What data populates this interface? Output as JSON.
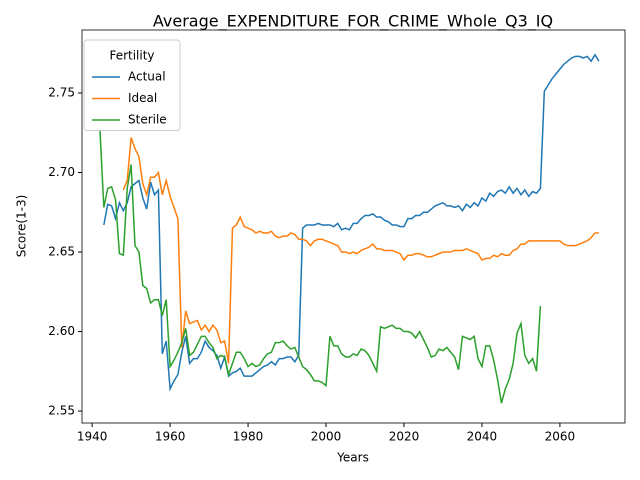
{
  "chart_data": {
    "type": "line",
    "title": "Average_EXPENDITURE_FOR_CRIME_Whole_Q3_IQ",
    "xlabel": "Years",
    "ylabel": "Score(1-3)",
    "x": [
      1942,
      1943,
      1944,
      1945,
      1946,
      1947,
      1948,
      1949,
      1950,
      1951,
      1952,
      1953,
      1954,
      1955,
      1956,
      1957,
      1958,
      1959,
      1960,
      1961,
      1962,
      1963,
      1964,
      1965,
      1966,
      1967,
      1968,
      1969,
      1970,
      1971,
      1972,
      1973,
      1974,
      1975,
      1976,
      1977,
      1978,
      1979,
      1980,
      1981,
      1982,
      1983,
      1984,
      1985,
      1986,
      1987,
      1988,
      1989,
      1990,
      1991,
      1992,
      1993,
      1994,
      1995,
      1996,
      1997,
      1998,
      1999,
      2000,
      2001,
      2002,
      2003,
      2004,
      2005,
      2006,
      2007,
      2008,
      2009,
      2010,
      2011,
      2012,
      2013,
      2014,
      2015,
      2016,
      2017,
      2018,
      2019,
      2020,
      2021,
      2022,
      2023,
      2024,
      2025,
      2026,
      2027,
      2028,
      2029,
      2030,
      2031,
      2032,
      2033,
      2034,
      2035,
      2036,
      2037,
      2038,
      2039,
      2040,
      2041,
      2042,
      2043,
      2044,
      2045,
      2046,
      2047,
      2048,
      2049,
      2050,
      2051,
      2052,
      2053,
      2054,
      2055,
      2056,
      2057,
      2058,
      2059,
      2060,
      2061,
      2062,
      2063,
      2064,
      2065,
      2066,
      2067,
      2068,
      2069,
      2070
    ],
    "series": [
      {
        "name": "Actual",
        "color": "#1f77b4",
        "values": [
          null,
          2.667,
          2.68,
          2.679,
          2.671,
          2.681,
          2.676,
          2.681,
          2.691,
          2.693,
          2.695,
          2.684,
          2.677,
          2.694,
          2.686,
          2.689,
          2.586,
          2.594,
          2.564,
          2.569,
          2.573,
          2.587,
          2.597,
          2.58,
          2.583,
          2.583,
          2.587,
          2.594,
          2.59,
          2.588,
          2.585,
          2.577,
          2.584,
          2.572,
          2.574,
          2.575,
          2.577,
          2.572,
          2.572,
          2.572,
          2.574,
          2.576,
          2.578,
          2.579,
          2.581,
          2.579,
          2.583,
          2.583,
          2.584,
          2.584,
          2.581,
          2.585,
          2.665,
          2.667,
          2.667,
          2.667,
          2.668,
          2.667,
          2.667,
          2.667,
          2.666,
          2.668,
          2.664,
          2.665,
          2.664,
          2.668,
          2.668,
          2.671,
          2.673,
          2.673,
          2.674,
          2.672,
          2.672,
          2.67,
          2.669,
          2.667,
          2.667,
          2.666,
          2.666,
          2.671,
          2.671,
          2.673,
          2.673,
          2.675,
          2.675,
          2.677,
          2.679,
          2.68,
          2.681,
          2.679,
          2.679,
          2.678,
          2.679,
          2.676,
          2.68,
          2.678,
          2.681,
          2.679,
          2.684,
          2.682,
          2.687,
          2.685,
          2.688,
          2.689,
          2.687,
          2.691,
          2.687,
          2.69,
          2.686,
          2.689,
          2.685,
          2.688,
          2.687,
          2.69,
          2.751,
          2.755,
          2.759,
          2.762,
          2.765,
          2.768,
          2.77,
          2.772,
          2.773,
          2.773,
          2.772,
          2.773,
          2.77,
          2.774,
          2.77
        ]
      },
      {
        "name": "Ideal",
        "color": "#ff7f0e",
        "values": [
          null,
          null,
          null,
          null,
          null,
          null,
          2.689,
          2.695,
          2.722,
          2.715,
          2.71,
          2.693,
          2.686,
          2.697,
          2.697,
          2.7,
          2.686,
          2.695,
          2.685,
          2.678,
          2.671,
          2.59,
          2.613,
          2.605,
          2.606,
          2.607,
          2.601,
          2.604,
          2.6,
          2.604,
          2.601,
          2.593,
          2.594,
          2.58,
          2.665,
          2.667,
          2.672,
          2.666,
          2.665,
          2.664,
          2.662,
          2.663,
          2.662,
          2.662,
          2.663,
          2.66,
          2.659,
          2.66,
          2.66,
          2.662,
          2.661,
          2.658,
          2.658,
          2.657,
          2.654,
          2.657,
          2.658,
          2.658,
          2.657,
          2.656,
          2.655,
          2.654,
          2.65,
          2.65,
          2.649,
          2.65,
          2.649,
          2.651,
          2.652,
          2.653,
          2.655,
          2.652,
          2.652,
          2.651,
          2.651,
          2.651,
          2.65,
          2.649,
          2.645,
          2.648,
          2.648,
          2.649,
          2.649,
          2.648,
          2.647,
          2.647,
          2.648,
          2.649,
          2.65,
          2.65,
          2.65,
          2.651,
          2.651,
          2.651,
          2.652,
          2.651,
          2.65,
          2.649,
          2.645,
          2.646,
          2.646,
          2.648,
          2.647,
          2.649,
          2.648,
          2.648,
          2.651,
          2.652,
          2.655,
          2.655,
          2.657,
          2.657,
          2.657,
          2.657,
          2.657,
          2.657,
          2.657,
          2.657,
          2.657,
          2.655,
          2.654,
          2.654,
          2.654,
          2.655,
          2.656,
          2.657,
          2.659,
          2.662,
          2.662
        ]
      },
      {
        "name": "Sterile",
        "color": "#2ca02c",
        "values": [
          2.727,
          2.678,
          2.69,
          2.691,
          2.683,
          2.649,
          2.648,
          2.69,
          2.705,
          2.654,
          2.65,
          2.629,
          2.627,
          2.618,
          2.62,
          2.62,
          2.61,
          2.62,
          2.578,
          2.582,
          2.587,
          2.593,
          2.602,
          2.585,
          2.587,
          2.592,
          2.597,
          2.597,
          2.593,
          2.59,
          2.583,
          2.585,
          2.584,
          2.573,
          2.58,
          2.587,
          2.587,
          2.583,
          2.578,
          2.58,
          2.578,
          2.579,
          2.583,
          2.586,
          2.587,
          2.593,
          2.593,
          2.594,
          2.591,
          2.589,
          2.59,
          2.584,
          2.578,
          2.576,
          2.573,
          2.569,
          2.569,
          2.568,
          2.566,
          2.597,
          2.591,
          2.591,
          2.586,
          2.584,
          2.584,
          2.586,
          2.585,
          2.589,
          2.588,
          2.585,
          2.58,
          2.575,
          2.603,
          2.602,
          2.603,
          2.604,
          2.602,
          2.602,
          2.6,
          2.6,
          2.599,
          2.596,
          2.6,
          2.595,
          2.59,
          2.584,
          2.585,
          2.589,
          2.588,
          2.59,
          2.587,
          2.584,
          2.576,
          2.597,
          2.596,
          2.595,
          2.597,
          2.583,
          2.578,
          2.591,
          2.591,
          2.582,
          2.57,
          2.555,
          2.564,
          2.57,
          2.58,
          2.599,
          2.605,
          2.585,
          2.58,
          2.583,
          2.575,
          2.616,
          null,
          null,
          null,
          null,
          null,
          null,
          null,
          null,
          null,
          null,
          null,
          null,
          null,
          null,
          null
        ]
      }
    ],
    "legend_title": "Fertility",
    "legend": "upper left",
    "xlim": [
      1937.4,
      2076.7
    ],
    "xticks": [
      1940,
      1960,
      1980,
      2000,
      2020,
      2040,
      2060
    ],
    "ylim": [
      2.5425,
      2.7896
    ],
    "yticks": [
      2.55,
      {
        "value": 2.6,
        "label": "2.60"
      },
      2.65,
      {
        "value": 2.7,
        "label": "2.70"
      },
      2.75
    ],
    "grid": false
  }
}
